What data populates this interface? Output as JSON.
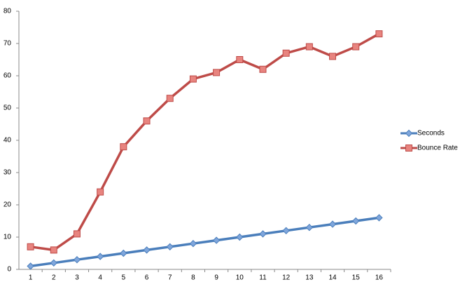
{
  "chart_data": {
    "type": "line",
    "categories": [
      "1",
      "2",
      "3",
      "4",
      "5",
      "6",
      "7",
      "8",
      "9",
      "10",
      "11",
      "12",
      "13",
      "14",
      "15",
      "16"
    ],
    "series": [
      {
        "name": "Seconds",
        "color": "#4a7ebb",
        "marker": "diamond",
        "values": [
          1,
          2,
          3,
          4,
          5,
          6,
          7,
          8,
          9,
          10,
          11,
          12,
          13,
          14,
          15,
          16
        ]
      },
      {
        "name": "Bounce Rate",
        "color": "#be4b48",
        "marker": "square",
        "values": [
          7,
          6,
          11,
          24,
          38,
          46,
          53,
          59,
          61,
          65,
          62,
          67,
          69,
          66,
          69,
          73
        ]
      }
    ],
    "ylim": [
      0,
      80
    ],
    "yticks": [
      0,
      10,
      20,
      30,
      40,
      50,
      60,
      70,
      80
    ],
    "grid": false,
    "legend": "right"
  }
}
